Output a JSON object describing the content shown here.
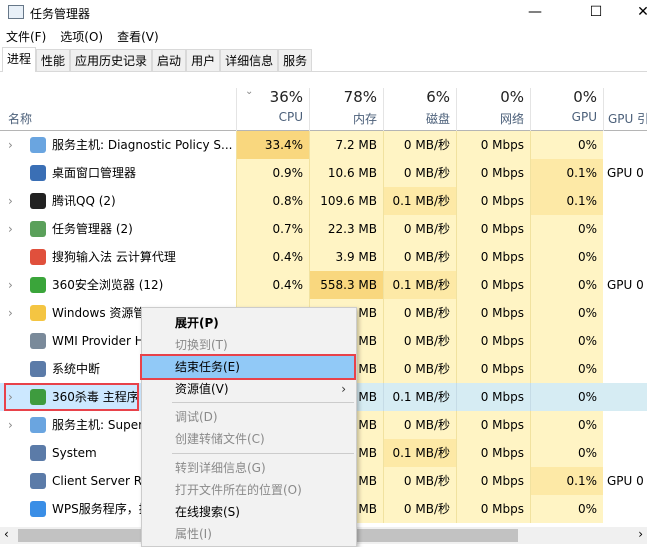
{
  "window": {
    "title": "任务管理器",
    "minimize": "—",
    "maximize": "☐",
    "close": "✕"
  },
  "menu": [
    "文件(F)",
    "选项(O)",
    "查看(V)"
  ],
  "tabs": [
    "进程",
    "性能",
    "应用历史记录",
    "启动",
    "用户",
    "详细信息",
    "服务"
  ],
  "header": {
    "name": "名称",
    "columns": [
      {
        "pct": "36%",
        "label": "CPU"
      },
      {
        "pct": "78%",
        "label": "内存"
      },
      {
        "pct": "6%",
        "label": "磁盘"
      },
      {
        "pct": "0%",
        "label": "网络"
      },
      {
        "pct": "0%",
        "label": "GPU"
      },
      {
        "pct": "",
        "label": "GPU 引"
      }
    ]
  },
  "rows": [
    {
      "name": "服务主机: Diagnostic Policy S...",
      "cpu": "33.4%",
      "mem": "7.2 MB",
      "disk": "0 MB/秒",
      "net": "0 Mbps",
      "gpu": "0%",
      "eng": "",
      "icon": "gear-icon",
      "color": "#6aa5e0"
    },
    {
      "name": "桌面窗口管理器",
      "cpu": "0.9%",
      "mem": "10.6 MB",
      "disk": "0 MB/秒",
      "net": "0 Mbps",
      "gpu": "0.1%",
      "eng": "GPU 0",
      "icon": "window-icon",
      "color": "#3a6fb5"
    },
    {
      "name": "腾讯QQ (2)",
      "cpu": "0.8%",
      "mem": "109.6 MB",
      "disk": "0.1 MB/秒",
      "net": "0 Mbps",
      "gpu": "0.1%",
      "eng": "",
      "icon": "qq-icon",
      "color": "#222"
    },
    {
      "name": "任务管理器 (2)",
      "cpu": "0.7%",
      "mem": "22.3 MB",
      "disk": "0 MB/秒",
      "net": "0 Mbps",
      "gpu": "0%",
      "eng": "",
      "icon": "task-manager-icon",
      "color": "#5aa05a"
    },
    {
      "name": "搜狗输入法 云计算代理",
      "cpu": "0.4%",
      "mem": "3.9 MB",
      "disk": "0 MB/秒",
      "net": "0 Mbps",
      "gpu": "0%",
      "eng": "",
      "icon": "sogou-icon",
      "color": "#e0503c"
    },
    {
      "name": "360安全浏览器 (12)",
      "cpu": "0.4%",
      "mem": "558.3 MB",
      "disk": "0.1 MB/秒",
      "net": "0 Mbps",
      "gpu": "0%",
      "eng": "GPU 0",
      "icon": "browser-360-icon",
      "color": "#3aa53a"
    },
    {
      "name": "Windows 资源管理器",
      "cpu": "",
      "mem": "MB",
      "disk": "0 MB/秒",
      "net": "0 Mbps",
      "gpu": "0%",
      "eng": "",
      "icon": "folder-icon",
      "color": "#f4c542"
    },
    {
      "name": "WMI Provider Host",
      "cpu": "",
      "mem": "MB",
      "disk": "0 MB/秒",
      "net": "0 Mbps",
      "gpu": "0%",
      "eng": "",
      "icon": "wmi-icon",
      "color": "#7a8a9a"
    },
    {
      "name": "系统中断",
      "cpu": "",
      "mem": "MB",
      "disk": "0 MB/秒",
      "net": "0 Mbps",
      "gpu": "0%",
      "eng": "",
      "icon": "system-icon",
      "color": "#5b7ba8"
    },
    {
      "name": "360杀毒 主程序",
      "cpu": "",
      "mem": "MB",
      "disk": "0.1 MB/秒",
      "net": "0 Mbps",
      "gpu": "0%",
      "eng": "",
      "icon": "shield-icon",
      "color": "#3e9b3e"
    },
    {
      "name": "服务主机: Superfetch",
      "cpu": "",
      "mem": "MB",
      "disk": "0 MB/秒",
      "net": "0 Mbps",
      "gpu": "0%",
      "eng": "",
      "icon": "gear-icon",
      "color": "#6aa5e0"
    },
    {
      "name": "System",
      "cpu": "",
      "mem": "MB",
      "disk": "0.1 MB/秒",
      "net": "0 Mbps",
      "gpu": "0%",
      "eng": "",
      "icon": "system-icon",
      "color": "#5b7ba8"
    },
    {
      "name": "Client Server Runtime",
      "cpu": "",
      "mem": "MB",
      "disk": "0 MB/秒",
      "net": "0 Mbps",
      "gpu": "0.1%",
      "eng": "GPU 0",
      "icon": "system-icon",
      "color": "#5b7ba8"
    },
    {
      "name": "WPS服务程序，提供...",
      "cpu": "",
      "mem": "MB",
      "disk": "0 MB/秒",
      "net": "0 Mbps",
      "gpu": "0%",
      "eng": "",
      "icon": "wps-cloud-icon",
      "color": "#3a8ee6"
    }
  ],
  "context_menu": [
    {
      "label": "展开(P)",
      "state": "bold"
    },
    {
      "label": "切换到(T)",
      "state": "dis"
    },
    {
      "label": "结束任务(E)",
      "state": "hov"
    },
    {
      "label": "资源值(V)",
      "state": "",
      "submenu": "›"
    },
    {
      "label": "调试(D)",
      "state": "dis"
    },
    {
      "label": "创建转储文件(C)",
      "state": "dis"
    },
    {
      "label": "转到详细信息(G)",
      "state": "dis"
    },
    {
      "label": "打开文件所在的位置(O)",
      "state": "dis"
    },
    {
      "label": "在线搜索(S)",
      "state": ""
    },
    {
      "label": "属性(I)",
      "state": "dis"
    }
  ],
  "scrollbar": {
    "left": "‹",
    "right": "›"
  }
}
